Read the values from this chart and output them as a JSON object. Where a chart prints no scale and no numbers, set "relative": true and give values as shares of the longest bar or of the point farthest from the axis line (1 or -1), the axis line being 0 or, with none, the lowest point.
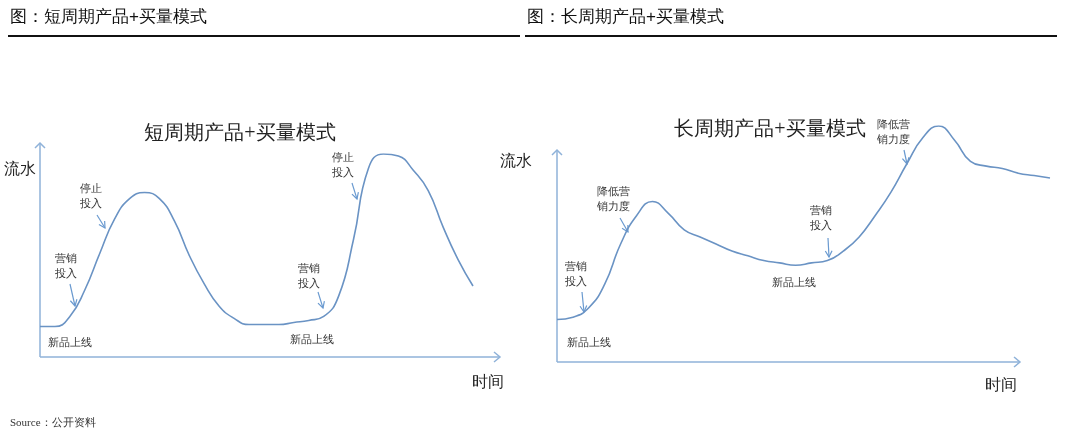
{
  "chart_data": [
    {
      "type": "line",
      "title": "图：短周期产品+买量模式",
      "subtitle": "短周期产品+买量模式",
      "xlabel": "时间",
      "ylabel": "流水",
      "relative": true,
      "color": "#6a93c4",
      "categories": [
        null,
        null,
        null,
        null,
        null,
        null,
        null,
        null,
        null,
        null,
        null,
        null,
        null,
        null,
        null,
        null,
        null,
        null,
        null,
        null,
        null,
        null,
        null,
        null,
        null,
        null,
        null,
        null,
        null,
        null
      ],
      "values": [
        0.15,
        0.15,
        0.2,
        0.33,
        0.51,
        0.68,
        0.78,
        0.81,
        0.78,
        0.67,
        0.5,
        0.36,
        0.25,
        0.19,
        0.16,
        0.16,
        0.16,
        0.17,
        0.18,
        0.2,
        0.3,
        0.58,
        0.93,
        1.0,
        0.99,
        0.92,
        0.82,
        0.64,
        0.48,
        0.35
      ],
      "annotations": [
        "营销投入",
        "停止投入",
        "营销投入",
        "停止投入",
        "新品上线",
        "新品上线",
        "Source：公开资料"
      ]
    },
    {
      "type": "line",
      "title": "图：长周期产品+买量模式",
      "subtitle": "长周期产品+买量模式",
      "xlabel": "时间",
      "ylabel": "流水",
      "relative": true,
      "color": "#6a93c4",
      "categories": [
        null,
        null,
        null,
        null,
        null,
        null,
        null,
        null,
        null,
        null,
        null,
        null,
        null,
        null,
        null,
        null,
        null,
        null,
        null,
        null,
        null,
        null,
        null,
        null,
        null,
        null,
        null,
        null,
        null,
        null,
        null,
        null
      ],
      "values": [
        0.18,
        0.19,
        0.23,
        0.33,
        0.5,
        0.62,
        0.68,
        0.63,
        0.56,
        0.53,
        0.5,
        0.47,
        0.45,
        0.43,
        0.42,
        0.41,
        0.42,
        0.43,
        0.47,
        0.53,
        0.62,
        0.72,
        0.84,
        0.95,
        1.0,
        0.94,
        0.85,
        0.83,
        0.82,
        0.8,
        0.79,
        0.78
      ],
      "annotations": [
        "营销投入",
        "降低营销力度",
        "营销投入",
        "降低营销力度",
        "新品上线",
        "新品上线"
      ]
    }
  ]
}
